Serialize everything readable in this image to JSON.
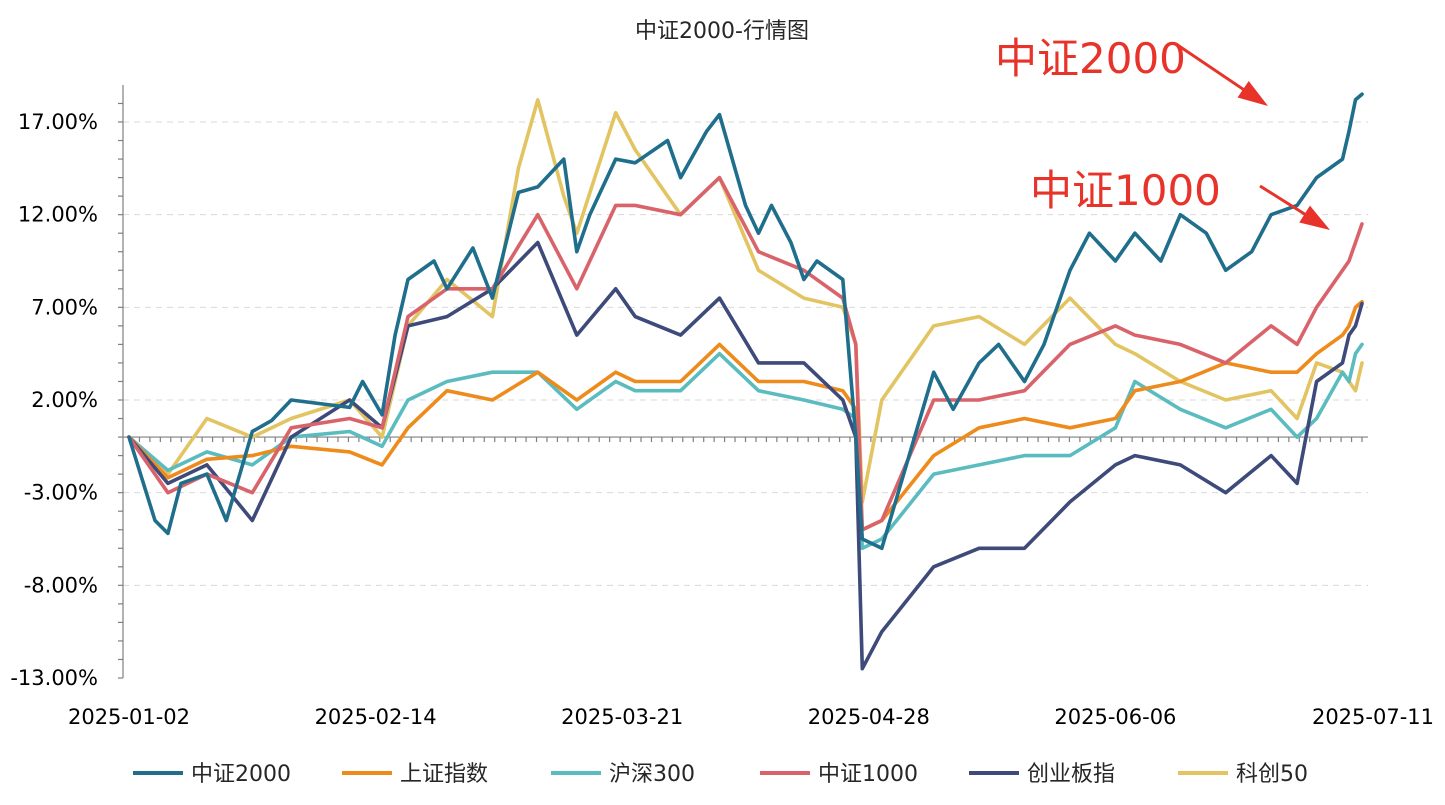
{
  "chart_data": {
    "type": "line",
    "title": "中证2000-行情图",
    "y_tick_labels": [
      "17.00%",
      "12.00%",
      "7.00%",
      "2.00%",
      "-3.00%",
      "-8.00%",
      "-13.00%"
    ],
    "y_ticks": [
      17,
      12,
      7,
      2,
      -3,
      -8,
      -13
    ],
    "ylim": [
      -13,
      19
    ],
    "x_range": [
      "2025-01-02",
      "2025-07-11"
    ],
    "x_tick_labels": [
      "2025-01-02",
      "2025-02-14",
      "2025-03-21",
      "2025-04-28",
      "2025-06-06",
      "2025-07-11"
    ],
    "legend_position": "bottom",
    "grid": true,
    "annotations": [
      {
        "text": "中证2000",
        "color": "#e8332a",
        "points_to_series": "中证2000"
      },
      {
        "text": "中证1000",
        "color": "#e8332a",
        "points_to_series": "中证1000"
      }
    ],
    "series": [
      {
        "name": "中证2000",
        "color": "#1f6e8c",
        "points": [
          [
            "2025-01-02",
            0
          ],
          [
            "2025-01-06",
            -4.5
          ],
          [
            "2025-01-08",
            -5.2
          ],
          [
            "2025-01-10",
            -2.5
          ],
          [
            "2025-01-14",
            -2.0
          ],
          [
            "2025-01-17",
            -4.5
          ],
          [
            "2025-01-21",
            0.3
          ],
          [
            "2025-01-24",
            0.9
          ],
          [
            "2025-01-27",
            2.0
          ],
          [
            "2025-02-05",
            1.6
          ],
          [
            "2025-02-07",
            3.0
          ],
          [
            "2025-02-10",
            1.2
          ],
          [
            "2025-02-12",
            5.5
          ],
          [
            "2025-02-14",
            8.5
          ],
          [
            "2025-02-18",
            9.5
          ],
          [
            "2025-02-20",
            8.0
          ],
          [
            "2025-02-24",
            10.2
          ],
          [
            "2025-02-27",
            7.5
          ],
          [
            "2025-03-03",
            13.2
          ],
          [
            "2025-03-06",
            13.5
          ],
          [
            "2025-03-10",
            15.0
          ],
          [
            "2025-03-12",
            10.0
          ],
          [
            "2025-03-14",
            12.0
          ],
          [
            "2025-03-18",
            15.0
          ],
          [
            "2025-03-21",
            14.8
          ],
          [
            "2025-03-26",
            16.0
          ],
          [
            "2025-03-28",
            14.0
          ],
          [
            "2025-04-01",
            16.5
          ],
          [
            "2025-04-03",
            17.4
          ],
          [
            "2025-04-07",
            12.5
          ],
          [
            "2025-04-09",
            11.0
          ],
          [
            "2025-04-11",
            12.5
          ],
          [
            "2025-04-14",
            10.5
          ],
          [
            "2025-04-16",
            8.5
          ],
          [
            "2025-04-18",
            9.5
          ],
          [
            "2025-04-22",
            8.5
          ],
          [
            "2025-04-24",
            0.0
          ],
          [
            "2025-04-25",
            -5.5
          ],
          [
            "2025-04-28",
            -6.0
          ],
          [
            "2025-05-06",
            3.5
          ],
          [
            "2025-05-09",
            1.5
          ],
          [
            "2025-05-13",
            4.0
          ],
          [
            "2025-05-16",
            5.0
          ],
          [
            "2025-05-20",
            3.0
          ],
          [
            "2025-05-23",
            5.0
          ],
          [
            "2025-05-27",
            9.0
          ],
          [
            "2025-05-30",
            11.0
          ],
          [
            "2025-06-03",
            9.5
          ],
          [
            "2025-06-06",
            11.0
          ],
          [
            "2025-06-10",
            9.5
          ],
          [
            "2025-06-13",
            12.0
          ],
          [
            "2025-06-17",
            11.0
          ],
          [
            "2025-06-20",
            9.0
          ],
          [
            "2025-06-24",
            10.0
          ],
          [
            "2025-06-27",
            12.0
          ],
          [
            "2025-07-01",
            12.5
          ],
          [
            "2025-07-04",
            14.0
          ],
          [
            "2025-07-08",
            15.0
          ],
          [
            "2025-07-09",
            16.5
          ],
          [
            "2025-07-10",
            18.2
          ],
          [
            "2025-07-11",
            18.5
          ]
        ]
      },
      {
        "name": "上证指数",
        "color": "#ed8b1c",
        "points": [
          [
            "2025-01-02",
            0
          ],
          [
            "2025-01-08",
            -2.2
          ],
          [
            "2025-01-14",
            -1.2
          ],
          [
            "2025-01-21",
            -1.0
          ],
          [
            "2025-01-27",
            -0.5
          ],
          [
            "2025-02-05",
            -0.8
          ],
          [
            "2025-02-10",
            -1.5
          ],
          [
            "2025-02-14",
            0.5
          ],
          [
            "2025-02-20",
            2.5
          ],
          [
            "2025-02-27",
            2.0
          ],
          [
            "2025-03-06",
            3.5
          ],
          [
            "2025-03-12",
            2.0
          ],
          [
            "2025-03-18",
            3.5
          ],
          [
            "2025-03-21",
            3.0
          ],
          [
            "2025-03-28",
            3.0
          ],
          [
            "2025-04-03",
            5.0
          ],
          [
            "2025-04-09",
            3.0
          ],
          [
            "2025-04-16",
            3.0
          ],
          [
            "2025-04-22",
            2.5
          ],
          [
            "2025-04-24",
            1.5
          ],
          [
            "2025-04-25",
            -5.0
          ],
          [
            "2025-04-28",
            -4.5
          ],
          [
            "2025-05-06",
            -1.0
          ],
          [
            "2025-05-13",
            0.5
          ],
          [
            "2025-05-20",
            1.0
          ],
          [
            "2025-05-27",
            0.5
          ],
          [
            "2025-06-03",
            1.0
          ],
          [
            "2025-06-06",
            2.5
          ],
          [
            "2025-06-13",
            3.0
          ],
          [
            "2025-06-20",
            4.0
          ],
          [
            "2025-06-27",
            3.5
          ],
          [
            "2025-07-01",
            3.5
          ],
          [
            "2025-07-04",
            4.5
          ],
          [
            "2025-07-08",
            5.5
          ],
          [
            "2025-07-09",
            6.0
          ],
          [
            "2025-07-10",
            7.0
          ],
          [
            "2025-07-11",
            7.3
          ]
        ]
      },
      {
        "name": "沪深300",
        "color": "#5bbcbf",
        "points": [
          [
            "2025-01-02",
            0
          ],
          [
            "2025-01-08",
            -1.8
          ],
          [
            "2025-01-14",
            -0.8
          ],
          [
            "2025-01-21",
            -1.5
          ],
          [
            "2025-01-27",
            0.0
          ],
          [
            "2025-02-05",
            0.3
          ],
          [
            "2025-02-10",
            -0.5
          ],
          [
            "2025-02-14",
            2.0
          ],
          [
            "2025-02-20",
            3.0
          ],
          [
            "2025-02-27",
            3.5
          ],
          [
            "2025-03-06",
            3.5
          ],
          [
            "2025-03-12",
            1.5
          ],
          [
            "2025-03-18",
            3.0
          ],
          [
            "2025-03-21",
            2.5
          ],
          [
            "2025-03-28",
            2.5
          ],
          [
            "2025-04-03",
            4.5
          ],
          [
            "2025-04-09",
            2.5
          ],
          [
            "2025-04-16",
            2.0
          ],
          [
            "2025-04-22",
            1.5
          ],
          [
            "2025-04-24",
            1.0
          ],
          [
            "2025-04-25",
            -6.0
          ],
          [
            "2025-04-28",
            -5.5
          ],
          [
            "2025-05-06",
            -2.0
          ],
          [
            "2025-05-13",
            -1.5
          ],
          [
            "2025-05-20",
            -1.0
          ],
          [
            "2025-05-27",
            -1.0
          ],
          [
            "2025-06-03",
            0.5
          ],
          [
            "2025-06-06",
            3.0
          ],
          [
            "2025-06-13",
            1.5
          ],
          [
            "2025-06-20",
            0.5
          ],
          [
            "2025-06-27",
            1.5
          ],
          [
            "2025-07-01",
            0.0
          ],
          [
            "2025-07-04",
            1.0
          ],
          [
            "2025-07-08",
            3.5
          ],
          [
            "2025-07-09",
            3.0
          ],
          [
            "2025-07-10",
            4.5
          ],
          [
            "2025-07-11",
            5.0
          ]
        ]
      },
      {
        "name": "中证1000",
        "color": "#d9636b",
        "points": [
          [
            "2025-01-02",
            0
          ],
          [
            "2025-01-08",
            -3.0
          ],
          [
            "2025-01-14",
            -2.0
          ],
          [
            "2025-01-21",
            -3.0
          ],
          [
            "2025-01-27",
            0.5
          ],
          [
            "2025-02-05",
            1.0
          ],
          [
            "2025-02-10",
            0.5
          ],
          [
            "2025-02-14",
            6.5
          ],
          [
            "2025-02-20",
            8.0
          ],
          [
            "2025-02-27",
            8.0
          ],
          [
            "2025-03-06",
            12.0
          ],
          [
            "2025-03-12",
            8.0
          ],
          [
            "2025-03-18",
            12.5
          ],
          [
            "2025-03-21",
            12.5
          ],
          [
            "2025-03-28",
            12.0
          ],
          [
            "2025-04-03",
            14.0
          ],
          [
            "2025-04-09",
            10.0
          ],
          [
            "2025-04-16",
            9.0
          ],
          [
            "2025-04-22",
            7.5
          ],
          [
            "2025-04-24",
            5.0
          ],
          [
            "2025-04-25",
            -5.0
          ],
          [
            "2025-04-28",
            -4.5
          ],
          [
            "2025-05-06",
            2.0
          ],
          [
            "2025-05-13",
            2.0
          ],
          [
            "2025-05-20",
            2.5
          ],
          [
            "2025-05-27",
            5.0
          ],
          [
            "2025-06-03",
            6.0
          ],
          [
            "2025-06-06",
            5.5
          ],
          [
            "2025-06-13",
            5.0
          ],
          [
            "2025-06-20",
            4.0
          ],
          [
            "2025-06-27",
            6.0
          ],
          [
            "2025-07-01",
            5.0
          ],
          [
            "2025-07-04",
            7.0
          ],
          [
            "2025-07-08",
            9.0
          ],
          [
            "2025-07-09",
            9.5
          ],
          [
            "2025-07-10",
            10.5
          ],
          [
            "2025-07-11",
            11.5
          ]
        ]
      },
      {
        "name": "创业板指",
        "color": "#3d4a7a",
        "points": [
          [
            "2025-01-02",
            0
          ],
          [
            "2025-01-08",
            -2.5
          ],
          [
            "2025-01-14",
            -1.5
          ],
          [
            "2025-01-21",
            -4.5
          ],
          [
            "2025-01-27",
            0.0
          ],
          [
            "2025-02-05",
            2.0
          ],
          [
            "2025-02-10",
            0.5
          ],
          [
            "2025-02-14",
            6.0
          ],
          [
            "2025-02-20",
            6.5
          ],
          [
            "2025-02-27",
            8.0
          ],
          [
            "2025-03-06",
            10.5
          ],
          [
            "2025-03-12",
            5.5
          ],
          [
            "2025-03-18",
            8.0
          ],
          [
            "2025-03-21",
            6.5
          ],
          [
            "2025-03-28",
            5.5
          ],
          [
            "2025-04-03",
            7.5
          ],
          [
            "2025-04-09",
            4.0
          ],
          [
            "2025-04-16",
            4.0
          ],
          [
            "2025-04-22",
            2.0
          ],
          [
            "2025-04-24",
            0.0
          ],
          [
            "2025-04-25",
            -12.5
          ],
          [
            "2025-04-28",
            -10.5
          ],
          [
            "2025-05-06",
            -7.0
          ],
          [
            "2025-05-13",
            -6.0
          ],
          [
            "2025-05-20",
            -6.0
          ],
          [
            "2025-05-27",
            -3.5
          ],
          [
            "2025-06-03",
            -1.5
          ],
          [
            "2025-06-06",
            -1.0
          ],
          [
            "2025-06-13",
            -1.5
          ],
          [
            "2025-06-20",
            -3.0
          ],
          [
            "2025-06-27",
            -1.0
          ],
          [
            "2025-07-01",
            -2.5
          ],
          [
            "2025-07-04",
            3.0
          ],
          [
            "2025-07-08",
            4.0
          ],
          [
            "2025-07-09",
            5.5
          ],
          [
            "2025-07-10",
            6.0
          ],
          [
            "2025-07-11",
            7.2
          ]
        ]
      },
      {
        "name": "科创50",
        "color": "#e3c462",
        "points": [
          [
            "2025-01-02",
            0
          ],
          [
            "2025-01-08",
            -2.0
          ],
          [
            "2025-01-14",
            1.0
          ],
          [
            "2025-01-21",
            0.0
          ],
          [
            "2025-01-27",
            1.0
          ],
          [
            "2025-02-05",
            2.0
          ],
          [
            "2025-02-10",
            0.0
          ],
          [
            "2025-02-14",
            6.0
          ],
          [
            "2025-02-20",
            8.5
          ],
          [
            "2025-02-27",
            6.5
          ],
          [
            "2025-03-03",
            14.5
          ],
          [
            "2025-03-06",
            18.2
          ],
          [
            "2025-03-10",
            13.0
          ],
          [
            "2025-03-12",
            11.0
          ],
          [
            "2025-03-18",
            17.5
          ],
          [
            "2025-03-21",
            15.5
          ],
          [
            "2025-03-28",
            12.0
          ],
          [
            "2025-04-03",
            14.0
          ],
          [
            "2025-04-09",
            9.0
          ],
          [
            "2025-04-16",
            7.5
          ],
          [
            "2025-04-22",
            7.0
          ],
          [
            "2025-04-24",
            5.0
          ],
          [
            "2025-04-25",
            -3.5
          ],
          [
            "2025-04-28",
            2.0
          ],
          [
            "2025-05-06",
            6.0
          ],
          [
            "2025-05-13",
            6.5
          ],
          [
            "2025-05-20",
            5.0
          ],
          [
            "2025-05-27",
            7.5
          ],
          [
            "2025-06-03",
            5.0
          ],
          [
            "2025-06-06",
            4.5
          ],
          [
            "2025-06-13",
            3.0
          ],
          [
            "2025-06-20",
            2.0
          ],
          [
            "2025-06-27",
            2.5
          ],
          [
            "2025-07-01",
            1.0
          ],
          [
            "2025-07-04",
            4.0
          ],
          [
            "2025-07-08",
            3.5
          ],
          [
            "2025-07-09",
            3.0
          ],
          [
            "2025-07-10",
            2.5
          ],
          [
            "2025-07-11",
            4.0
          ]
        ]
      }
    ]
  }
}
